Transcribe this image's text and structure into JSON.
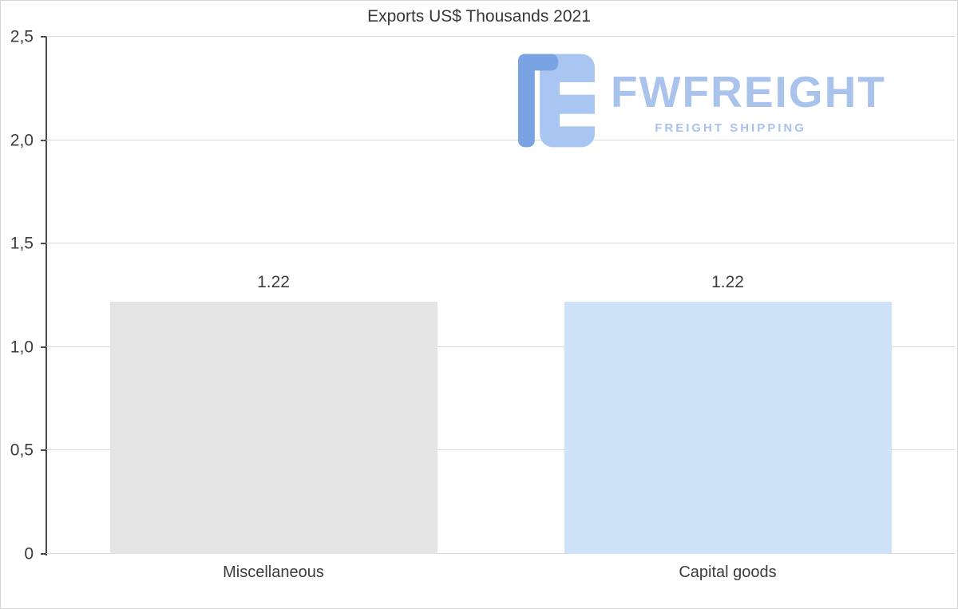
{
  "chart_data": {
    "type": "bar",
    "title": "Exports US$ Thousands 2021",
    "categories": [
      "Miscellaneous",
      "Capital goods"
    ],
    "values": [
      1.22,
      1.22
    ],
    "value_labels": [
      "1.22",
      "1.22"
    ],
    "bar_colors": [
      "#e4e4e4",
      "#cfe3f8"
    ],
    "xlabel": "",
    "ylabel": "",
    "ylim": [
      0,
      2.5
    ],
    "yticks": [
      {
        "value": 0,
        "label": "0"
      },
      {
        "value": 0.5,
        "label": "0,5"
      },
      {
        "value": 1.0,
        "label": "1,0"
      },
      {
        "value": 1.5,
        "label": "1,5"
      },
      {
        "value": 2.0,
        "label": "2,0"
      },
      {
        "value": 2.5,
        "label": "2,5"
      }
    ],
    "grid": true,
    "legend": false
  },
  "watermark": {
    "brand": "FWFREIGHT",
    "tagline": "FREIGHT SHIPPING",
    "brand_color": "#a9c3ec",
    "logo_colors": {
      "primary": "#79a3e3",
      "secondary": "#a8c6f1"
    }
  }
}
